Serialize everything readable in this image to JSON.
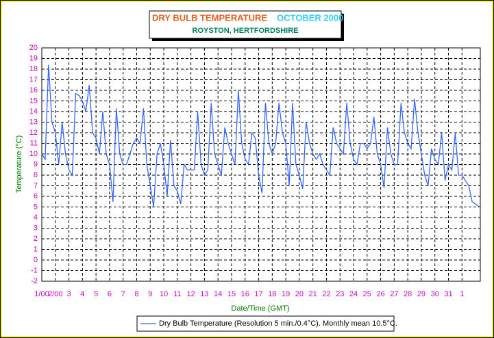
{
  "chart_data": {
    "type": "line",
    "title": "DRY BULB TEMPERATURE",
    "title_month": "OCTOBER 2000",
    "subtitle": "ROYSTON, HERTFORDSHIRE",
    "x_label": "Date/Time (GMT)",
    "y_label": "Temperature (°C)",
    "xlim": [
      0,
      32.35
    ],
    "ylim": [
      -2,
      20
    ],
    "yticks": [
      -2,
      -1,
      0,
      1,
      2,
      3,
      4,
      5,
      6,
      7,
      8,
      9,
      10,
      11,
      12,
      13,
      14,
      15,
      16,
      17,
      18,
      19,
      20
    ],
    "xticks": [
      {
        "value": 0,
        "label": "1/00"
      },
      {
        "value": 1,
        "label": "2/00"
      },
      {
        "value": 2,
        "label": "3"
      },
      {
        "value": 3,
        "label": "4"
      },
      {
        "value": 4,
        "label": "5"
      },
      {
        "value": 5,
        "label": "6"
      },
      {
        "value": 6,
        "label": "7"
      },
      {
        "value": 7,
        "label": "8"
      },
      {
        "value": 8,
        "label": "9"
      },
      {
        "value": 9,
        "label": "10"
      },
      {
        "value": 10,
        "label": "11"
      },
      {
        "value": 11,
        "label": "12"
      },
      {
        "value": 12,
        "label": "13"
      },
      {
        "value": 13,
        "label": "14"
      },
      {
        "value": 14,
        "label": "15"
      },
      {
        "value": 15,
        "label": "16"
      },
      {
        "value": 16,
        "label": "17"
      },
      {
        "value": 17,
        "label": "18"
      },
      {
        "value": 18,
        "label": "19"
      },
      {
        "value": 19,
        "label": "20"
      },
      {
        "value": 20,
        "label": "21"
      },
      {
        "value": 21,
        "label": "22"
      },
      {
        "value": 22,
        "label": "23"
      },
      {
        "value": 23,
        "label": "24"
      },
      {
        "value": 24,
        "label": "25"
      },
      {
        "value": 25,
        "label": "26"
      },
      {
        "value": 26,
        "label": "27"
      },
      {
        "value": 27,
        "label": "28"
      },
      {
        "value": 28,
        "label": "29"
      },
      {
        "value": 29,
        "label": "30"
      },
      {
        "value": 30,
        "label": "31"
      },
      {
        "value": 31,
        "label": "1"
      }
    ],
    "grid": true,
    "x": [
      0,
      0.25,
      0.5,
      0.75,
      1,
      1.25,
      1.5,
      1.75,
      2,
      2.25,
      2.5,
      2.75,
      3,
      3.25,
      3.5,
      3.75,
      4,
      4.25,
      4.5,
      4.75,
      5,
      5.25,
      5.5,
      5.75,
      6,
      6.25,
      6.5,
      6.75,
      7,
      7.25,
      7.5,
      7.75,
      8,
      8.25,
      8.5,
      8.75,
      9,
      9.25,
      9.5,
      9.75,
      10,
      10.25,
      10.5,
      10.75,
      11,
      11.25,
      11.5,
      11.75,
      12,
      12.25,
      12.5,
      12.75,
      13,
      13.25,
      13.5,
      13.75,
      14,
      14.25,
      14.5,
      14.75,
      15,
      15.25,
      15.5,
      15.75,
      16,
      16.25,
      16.5,
      16.75,
      17,
      17.25,
      17.5,
      17.75,
      18,
      18.25,
      18.5,
      18.75,
      19,
      19.25,
      19.5,
      19.75,
      20,
      20.25,
      20.5,
      20.75,
      21,
      21.25,
      21.5,
      21.75,
      22,
      22.25,
      22.5,
      22.75,
      23,
      23.25,
      23.5,
      23.75,
      24,
      24.25,
      24.5,
      24.75,
      25,
      25.25,
      25.5,
      25.75,
      26,
      26.25,
      26.5,
      26.75,
      27,
      27.25,
      27.5,
      27.75,
      28,
      28.25,
      28.5,
      28.75,
      29,
      29.25,
      29.5,
      29.75,
      30,
      30.25,
      30.5,
      30.75,
      31,
      31.25,
      31.5,
      31.75,
      32.3
    ],
    "series": [
      {
        "name": "Dry Bulb Temperature (Resolution 5 min./0.4°C). Monthly mean 10.5°C.",
        "color": "#3366ff",
        "values": [
          10,
          9.5,
          18.4,
          13,
          12,
          9,
          13,
          10,
          8.5,
          8,
          15.7,
          15.5,
          15,
          14,
          16.5,
          12,
          11.5,
          10,
          14,
          10,
          9,
          5.5,
          14.3,
          10,
          9,
          9,
          10,
          11,
          11.5,
          11,
          14.3,
          9,
          7,
          5,
          10,
          11,
          9,
          6,
          11.3,
          7,
          6.5,
          5.3,
          9,
          8.5,
          8.5,
          8.5,
          14,
          9,
          8,
          8.5,
          14.8,
          10,
          9,
          8,
          12.5,
          11,
          10,
          9,
          16,
          11,
          9.5,
          9,
          12,
          11.5,
          8,
          6.3,
          14.8,
          11,
          10,
          11,
          14.8,
          12,
          11,
          7,
          14.8,
          9,
          8,
          6.7,
          13,
          11,
          10,
          9.5,
          10,
          9,
          8.5,
          8,
          12.5,
          11,
          10.5,
          10,
          14.8,
          11,
          9.5,
          9,
          11,
          11,
          10.5,
          11,
          13.5,
          10,
          9,
          6.8,
          12.5,
          10,
          9,
          9,
          14.8,
          12,
          11,
          10.5,
          15.2,
          12,
          10,
          8,
          7,
          10.5,
          9.5,
          9,
          12,
          7.5,
          9,
          8.5,
          12,
          8,
          8,
          7.5,
          7,
          5.5,
          5
        ]
      }
    ]
  }
}
